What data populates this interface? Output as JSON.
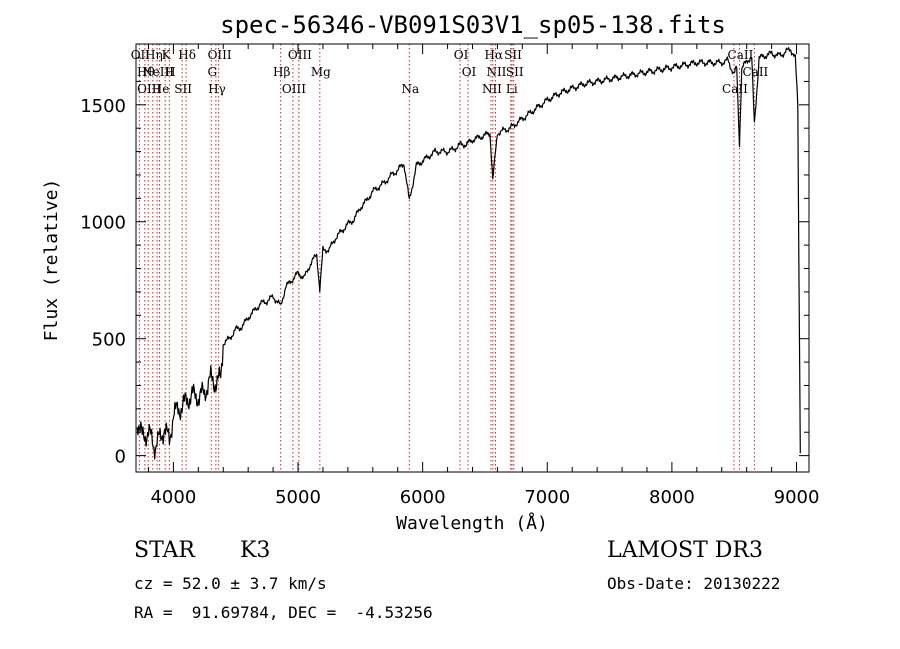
{
  "chart_data": {
    "type": "line",
    "title": "spec-56346-VB091S03V1_sp05-138.fits",
    "xlabel": "Wavelength (Å)",
    "ylabel": "Flux (relative)",
    "xlim": [
      3700,
      9100
    ],
    "ylim": [
      -70,
      1760
    ],
    "xticks": [
      {
        "value": 4000,
        "label": "4000"
      },
      {
        "value": 5000,
        "label": "5000"
      },
      {
        "value": 6000,
        "label": "6000"
      },
      {
        "value": 7000,
        "label": "7000"
      },
      {
        "value": 8000,
        "label": "8000"
      },
      {
        "value": 9000,
        "label": "9000"
      }
    ],
    "yticks": [
      {
        "value": 0,
        "label": "0"
      },
      {
        "value": 500,
        "label": "500"
      },
      {
        "value": 1000,
        "label": "1000"
      },
      {
        "value": 1500,
        "label": "1500"
      }
    ],
    "series": [
      {
        "name": "spectrum",
        "x": [
          3710,
          3750,
          3800,
          3850,
          3900,
          3930,
          3968,
          4000,
          4050,
          4100,
          4150,
          4200,
          4250,
          4300,
          4340,
          4380,
          4400,
          4450,
          4500,
          4550,
          4600,
          4650,
          4700,
          4750,
          4800,
          4861,
          4900,
          4950,
          5000,
          5050,
          5100,
          5150,
          5175,
          5200,
          5250,
          5300,
          5350,
          5400,
          5450,
          5500,
          5550,
          5600,
          5650,
          5700,
          5750,
          5800,
          5850,
          5893,
          5950,
          6000,
          6050,
          6100,
          6150,
          6200,
          6250,
          6300,
          6350,
          6400,
          6450,
          6500,
          6540,
          6563,
          6600,
          6650,
          6700,
          6750,
          6800,
          6900,
          7000,
          7100,
          7200,
          7300,
          7400,
          7500,
          7600,
          7700,
          7800,
          7900,
          8000,
          8100,
          8200,
          8300,
          8400,
          8450,
          8498,
          8520,
          8542,
          8560,
          8600,
          8640,
          8662,
          8700,
          8750,
          8800,
          8850,
          8900,
          8950,
          8990,
          9010,
          9020,
          9030
        ],
        "y": [
          150,
          80,
          100,
          40,
          80,
          120,
          60,
          180,
          200,
          230,
          260,
          250,
          270,
          330,
          310,
          330,
          480,
          500,
          540,
          550,
          590,
          620,
          650,
          660,
          680,
          640,
          720,
          750,
          780,
          760,
          820,
          860,
          710,
          880,
          880,
          930,
          960,
          990,
          1010,
          1060,
          1090,
          1130,
          1150,
          1170,
          1200,
          1220,
          1250,
          1090,
          1240,
          1260,
          1280,
          1300,
          1300,
          1300,
          1310,
          1330,
          1330,
          1350,
          1360,
          1370,
          1380,
          1180,
          1380,
          1390,
          1400,
          1420,
          1440,
          1480,
          1520,
          1550,
          1570,
          1590,
          1600,
          1610,
          1620,
          1630,
          1640,
          1650,
          1660,
          1670,
          1680,
          1680,
          1680,
          1690,
          1630,
          1660,
          1330,
          1650,
          1690,
          1700,
          1420,
          1700,
          1710,
          1720,
          1710,
          1720,
          1740,
          1700,
          1500,
          750,
          10
        ]
      }
    ],
    "line_markers": [
      {
        "x": 3727,
        "label": "OII"
      },
      {
        "x": 3771,
        "label": "Hθ"
      },
      {
        "x": 3798,
        "label": "OIII"
      },
      {
        "x": 3835,
        "label": "Hη"
      },
      {
        "x": 3869,
        "label": "NeIII"
      },
      {
        "x": 3889,
        "label": "He"
      },
      {
        "x": 3934,
        "label": "K"
      },
      {
        "x": 3968,
        "label": "H"
      },
      {
        "x": 4070,
        "label": "SII"
      },
      {
        "x": 4102,
        "label": "Hδ"
      },
      {
        "x": 4304,
        "label": "G"
      },
      {
        "x": 4341,
        "label": "Hγ"
      },
      {
        "x": 4363,
        "label": "OIII"
      },
      {
        "x": 4861,
        "label": "Hβ"
      },
      {
        "x": 4959,
        "label": "OIII"
      },
      {
        "x": 5007,
        "label": "OIII"
      },
      {
        "x": 5175,
        "label": "Mg"
      },
      {
        "x": 5893,
        "label": "Na"
      },
      {
        "x": 6300,
        "label": "OI"
      },
      {
        "x": 6364,
        "label": "OI"
      },
      {
        "x": 6548,
        "label": "NII"
      },
      {
        "x": 6563,
        "label": "Hα"
      },
      {
        "x": 6584,
        "label": "NII"
      },
      {
        "x": 6707,
        "label": "Li"
      },
      {
        "x": 6717,
        "label": "SII"
      },
      {
        "x": 6731,
        "label": "SII"
      },
      {
        "x": 8498,
        "label": "CaII"
      },
      {
        "x": 8542,
        "label": "CaII"
      },
      {
        "x": 8662,
        "label": "CaII"
      }
    ]
  },
  "info": {
    "class": "STAR",
    "subclass": "K3",
    "survey": "LAMOST DR3",
    "cz": "cz = 52.0 ± 3.7 km/s",
    "obs_date": "Obs-Date: 20130222",
    "coords": "RA =  91.69784, DEC =  -4.53256"
  }
}
